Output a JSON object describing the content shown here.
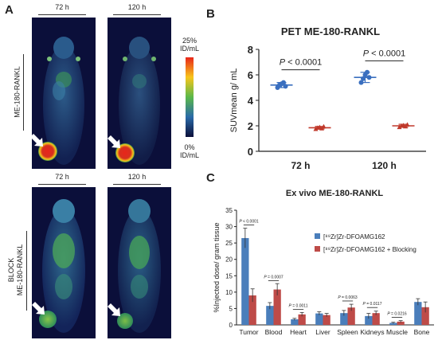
{
  "panel_a": {
    "letter": "A",
    "col_headers": [
      "72 h",
      "120 h"
    ],
    "row_labels": [
      "ME-180-RANKL",
      "BLOCK\nME-180-RANKL"
    ],
    "colorbar": {
      "max_label": "25%\nID/mL",
      "min_label": "0%\nID/mL"
    },
    "colors": {
      "background": "#0b0f3a",
      "tumor_hot": "#d7301f",
      "tumor_block": "#76c043"
    }
  },
  "chart_data": [
    {
      "panel": "B",
      "type": "scatter",
      "title": "PET ME-180-RANKL",
      "ylabel": "SUVmean g/ mL",
      "xlabel": "",
      "categories": [
        "72 h",
        "120 h"
      ],
      "ylim": [
        0,
        8
      ],
      "yticks": [
        0,
        2,
        4,
        6,
        8
      ],
      "series": [
        {
          "name": "",
          "color": "#3a6fbf",
          "points": {
            "72 h": [
              5.0,
              5.2,
              5.3,
              5.4,
              5.1
            ],
            "120 h": [
              5.4,
              5.7,
              6.0,
              6.2,
              5.8
            ]
          },
          "mean": {
            "72 h": 5.2,
            "120 h": 5.8
          },
          "sd": {
            "72 h": 0.2,
            "120 h": 0.4
          }
        },
        {
          "name": "",
          "color": "#c0392b",
          "points": {
            "72 h": [
              1.75,
              1.85,
              1.9,
              1.8,
              1.95
            ],
            "120 h": [
              1.9,
              2.0,
              2.05,
              1.95,
              2.1
            ]
          },
          "mean": {
            "72 h": 1.85,
            "120 h": 2.0
          },
          "sd": {
            "72 h": 0.1,
            "120 h": 0.12
          }
        }
      ],
      "annotations": [
        {
          "text": "P < 0.0001",
          "category": "72 h",
          "y": 6.4
        },
        {
          "text": "P < 0.0001",
          "category": "120 h",
          "y": 7.1
        }
      ]
    },
    {
      "panel": "C",
      "type": "bar",
      "title": "Ex vivo ME-180-RANKL",
      "ylabel": "%Injected dose/ gram tissue",
      "xlabel": "",
      "categories": [
        "Tumor",
        "Blood",
        "Heart",
        "Liver",
        "Spleen",
        "Kidneys",
        "Muscle",
        "Bone"
      ],
      "ylim": [
        0,
        35
      ],
      "yticks": [
        0,
        5,
        10,
        15,
        20,
        25,
        30,
        35
      ],
      "legend_position": "right",
      "series": [
        {
          "name": "[⁸⁹Zr]Zr-DFOAMG162",
          "color": "#4a7ebb",
          "values": [
            26.5,
            5.8,
            1.7,
            3.5,
            3.6,
            2.7,
            0.6,
            7.0
          ],
          "errors": [
            3.0,
            1.0,
            0.3,
            0.5,
            0.8,
            0.8,
            0.2,
            1.0
          ]
        },
        {
          "name": "[⁸⁹Zr]Zr-DFOAMG162 + Blocking",
          "color": "#be4b48",
          "values": [
            9.0,
            10.8,
            3.2,
            3.0,
            5.3,
            3.6,
            1.0,
            5.4
          ],
          "errors": [
            2.0,
            1.8,
            0.6,
            0.5,
            1.0,
            0.6,
            0.3,
            1.6
          ]
        }
      ],
      "annotations": [
        {
          "text": "P < 0.0001",
          "category": "Tumor",
          "y": 30.5
        },
        {
          "text": "P = 0.0007",
          "category": "Blood",
          "y": 13.5
        },
        {
          "text": "P = 0.0011",
          "category": "Heart",
          "y": 4.7
        },
        {
          "text": "P = 0.0063",
          "category": "Spleen",
          "y": 7.3
        },
        {
          "text": "P = 0.0117",
          "category": "Kidneys",
          "y": 5.3
        },
        {
          "text": "P = 0.0216",
          "category": "Muscle",
          "y": 2.3
        }
      ]
    }
  ]
}
